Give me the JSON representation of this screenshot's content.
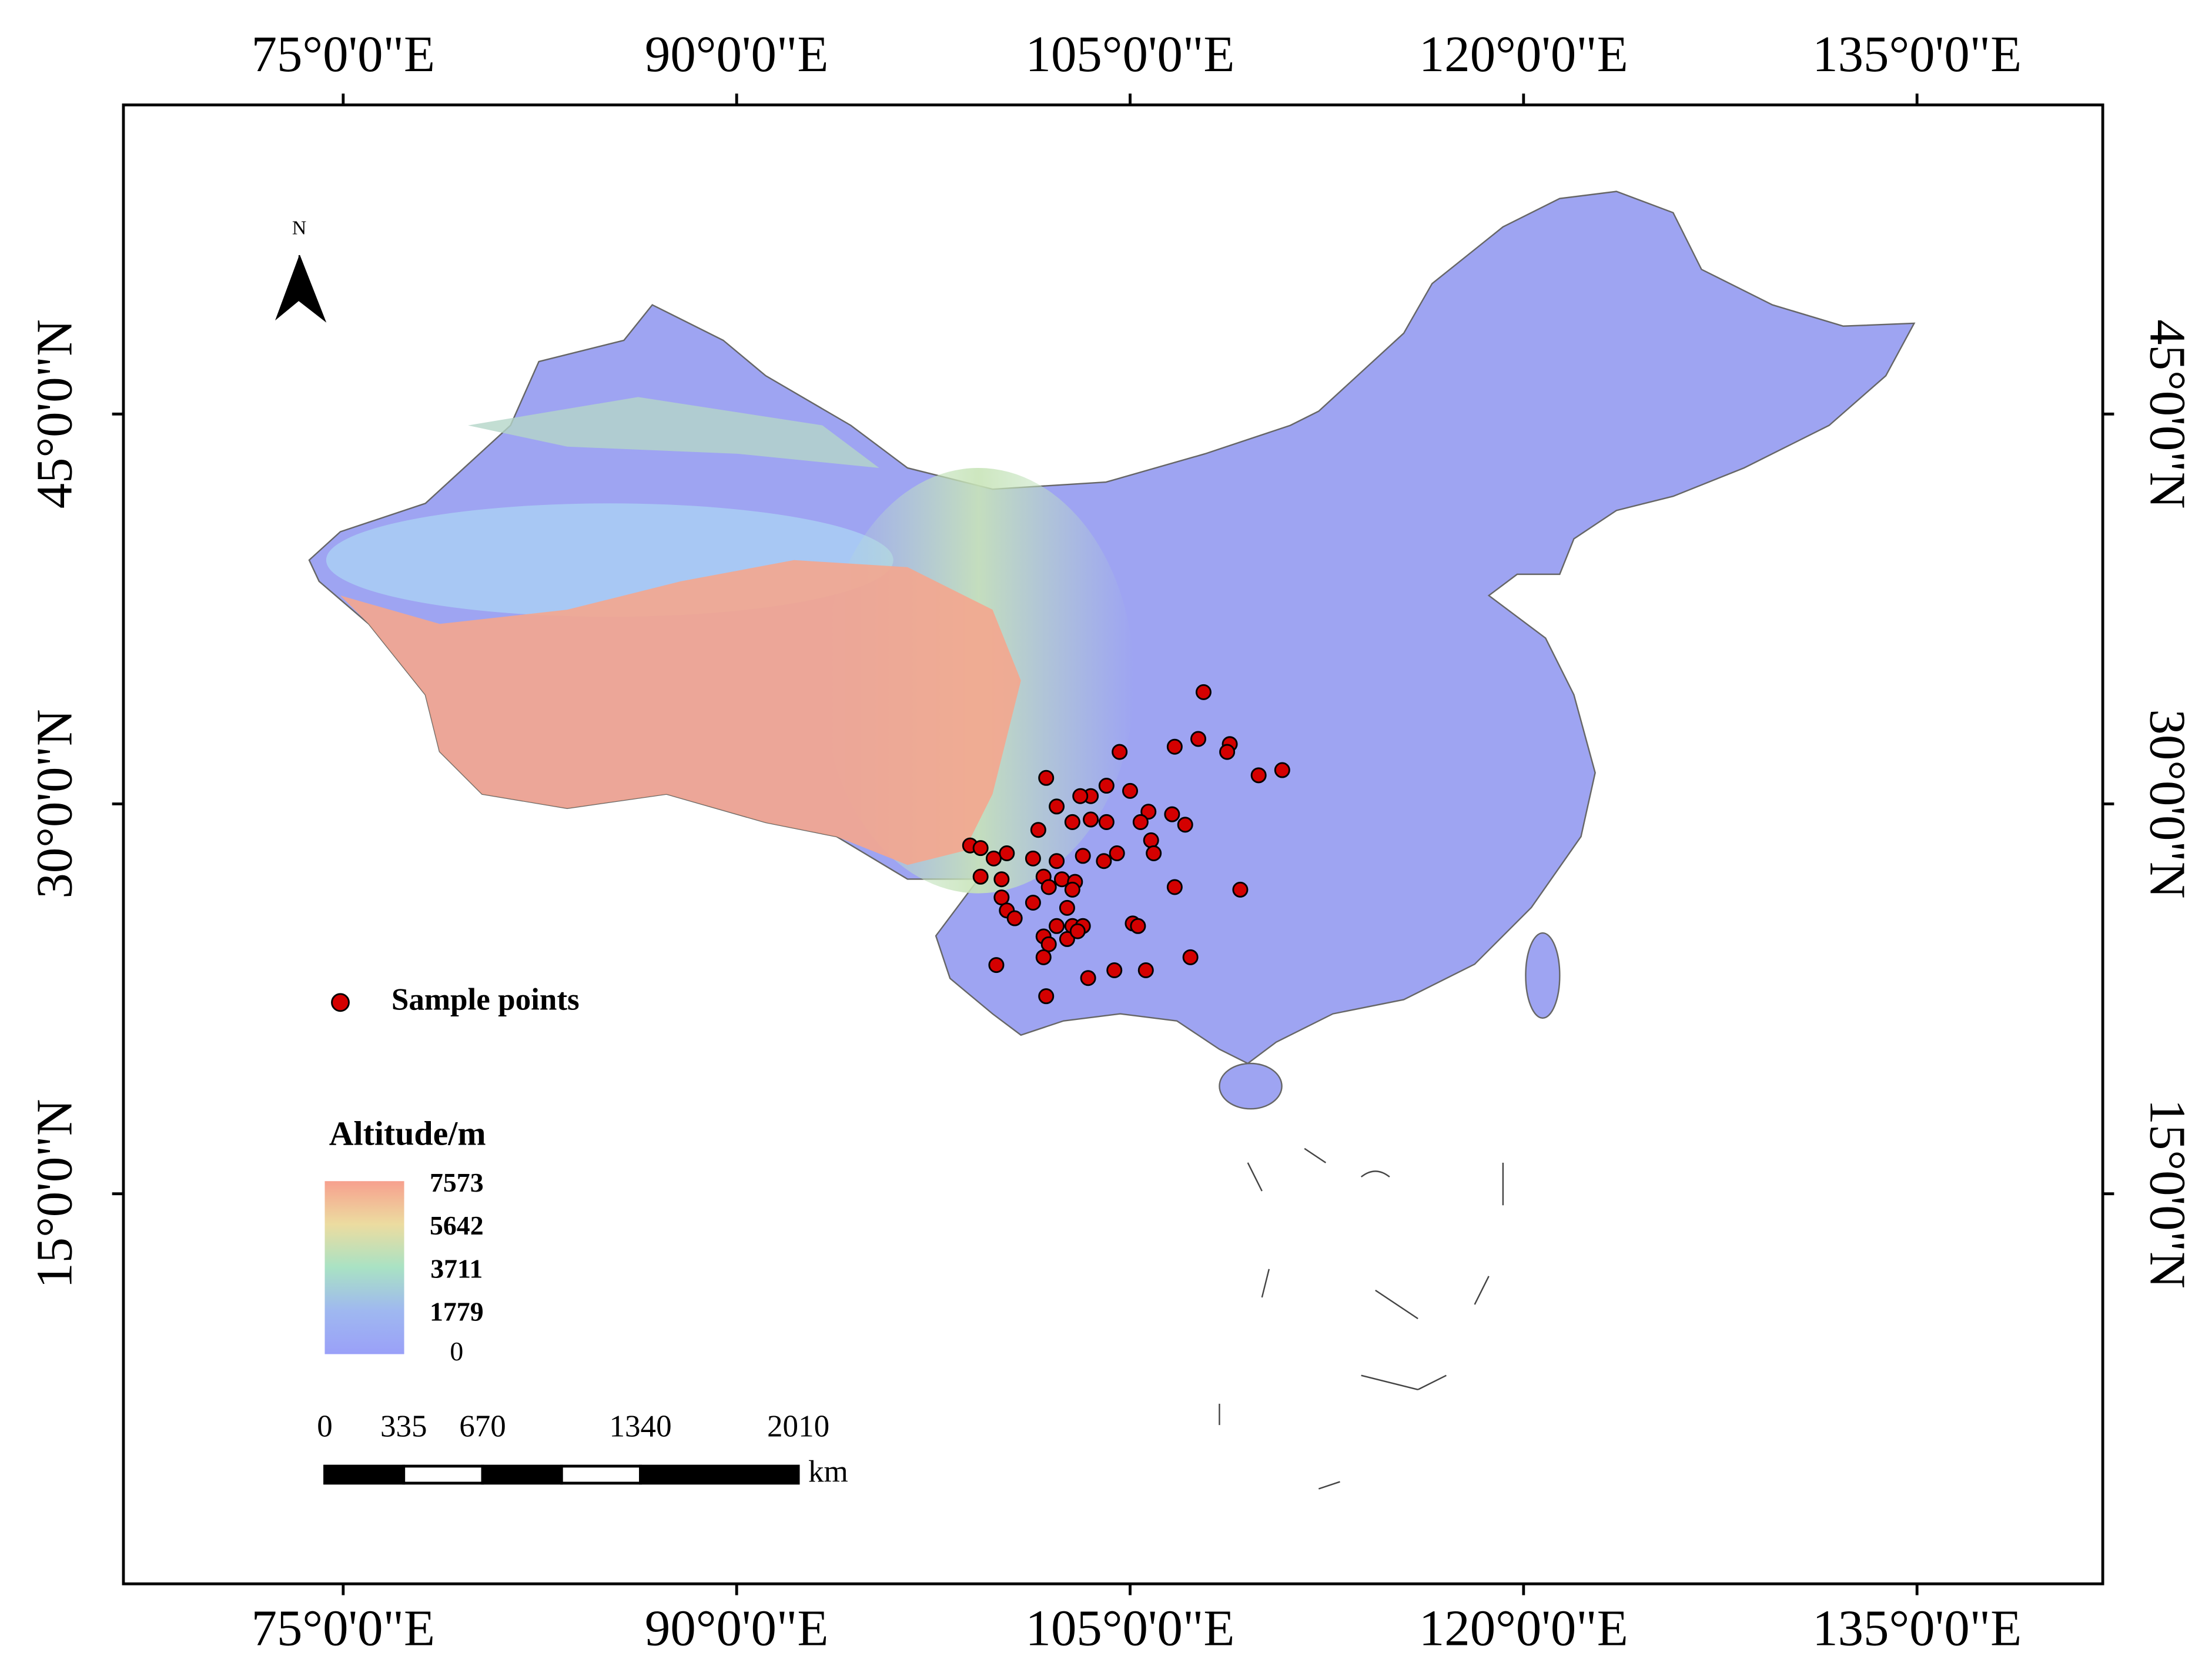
{
  "map": {
    "lon_ticks": [
      {
        "value": 75,
        "label": "75°0'0\"E"
      },
      {
        "value": 90,
        "label": "90°0'0\"E"
      },
      {
        "value": 105,
        "label": "105°0'0\"E"
      },
      {
        "value": 120,
        "label": "120°0'0\"E"
      },
      {
        "value": 135,
        "label": "135°0'0\"E"
      }
    ],
    "lat_ticks": [
      {
        "value": 45,
        "label": "45°0'0\"N"
      },
      {
        "value": 30,
        "label": "30°0'0\"N"
      },
      {
        "value": 15,
        "label": "15°0'0\"N"
      }
    ],
    "north": "N",
    "legend": {
      "points": "Sample points",
      "color": "#d40000",
      "altitude_title": "Altitude/m",
      "altitude_ticks": [
        7573,
        5642,
        3711,
        1779,
        0
      ]
    },
    "scale": {
      "ticks": [
        0,
        335,
        670,
        1340,
        2010
      ],
      "unit": "km"
    },
    "points": [
      [
        107.8,
        34.3
      ],
      [
        104.6,
        32.0
      ],
      [
        106.7,
        32.2
      ],
      [
        107.6,
        32.5
      ],
      [
        108.8,
        32.3
      ],
      [
        108.7,
        32.0
      ],
      [
        110.8,
        31.3
      ],
      [
        109.9,
        31.1
      ],
      [
        101.8,
        31.0
      ],
      [
        104.1,
        30.7
      ],
      [
        105.0,
        30.5
      ],
      [
        103.5,
        30.3
      ],
      [
        103.1,
        30.3
      ],
      [
        102.2,
        29.9
      ],
      [
        105.7,
        29.7
      ],
      [
        106.6,
        29.6
      ],
      [
        107.1,
        29.2
      ],
      [
        103.5,
        29.4
      ],
      [
        102.8,
        29.3
      ],
      [
        104.1,
        29.3
      ],
      [
        105.4,
        29.3
      ],
      [
        101.5,
        29.0
      ],
      [
        105.8,
        28.6
      ],
      [
        105.9,
        28.1
      ],
      [
        104.5,
        28.1
      ],
      [
        98.9,
        28.4
      ],
      [
        99.3,
        28.3
      ],
      [
        99.8,
        27.9
      ],
      [
        100.3,
        28.1
      ],
      [
        101.3,
        27.9
      ],
      [
        102.2,
        27.8
      ],
      [
        103.2,
        28.0
      ],
      [
        104.0,
        27.8
      ],
      [
        99.3,
        27.2
      ],
      [
        100.1,
        27.1
      ],
      [
        101.7,
        27.2
      ],
      [
        102.4,
        27.1
      ],
      [
        102.9,
        27.0
      ],
      [
        101.9,
        26.8
      ],
      [
        102.8,
        26.7
      ],
      [
        100.1,
        26.4
      ],
      [
        106.7,
        26.8
      ],
      [
        109.2,
        26.7
      ],
      [
        101.3,
        26.2
      ],
      [
        100.3,
        25.9
      ],
      [
        100.6,
        25.6
      ],
      [
        102.6,
        26.0
      ],
      [
        102.2,
        25.3
      ],
      [
        102.8,
        25.3
      ],
      [
        103.2,
        25.3
      ],
      [
        105.1,
        25.4
      ],
      [
        105.3,
        25.3
      ],
      [
        101.7,
        24.9
      ],
      [
        102.6,
        24.8
      ],
      [
        103.0,
        25.1
      ],
      [
        101.9,
        24.6
      ],
      [
        101.7,
        24.1
      ],
      [
        99.9,
        23.8
      ],
      [
        103.4,
        23.3
      ],
      [
        104.4,
        23.6
      ],
      [
        105.6,
        23.6
      ],
      [
        107.3,
        24.1
      ],
      [
        101.8,
        22.6
      ]
    ]
  }
}
